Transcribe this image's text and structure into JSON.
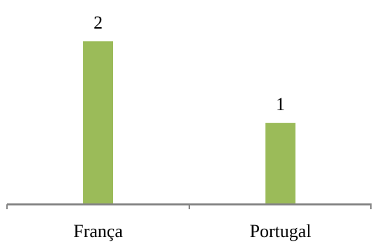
{
  "chart_data": {
    "type": "bar",
    "categories": [
      "França",
      "Portugal"
    ],
    "values": [
      2,
      1
    ],
    "title": "",
    "xlabel": "",
    "ylabel": "",
    "ylim": [
      0,
      2.25
    ],
    "grid": false,
    "legend": "none",
    "data_labels": [
      "2",
      "1"
    ],
    "bar_color": "#9bbb59",
    "axis_color": "#868686"
  }
}
